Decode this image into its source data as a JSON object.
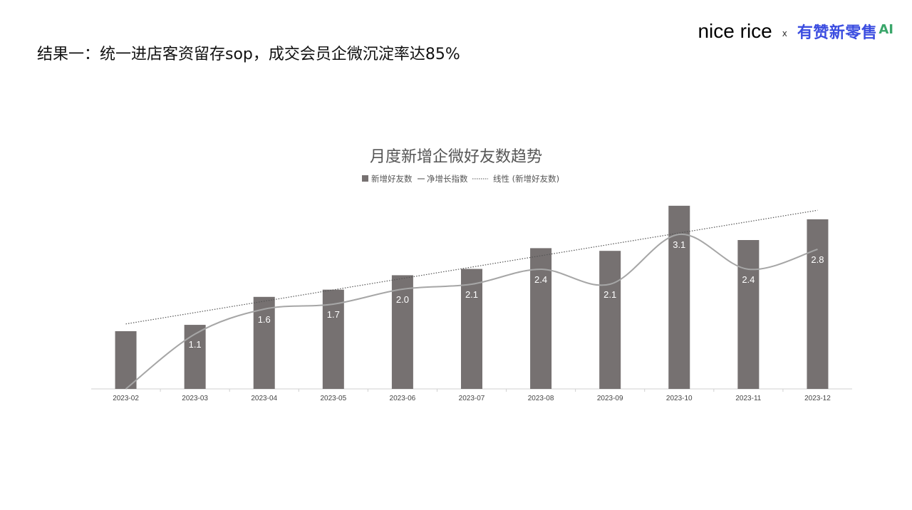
{
  "slide": {
    "title": "结果一：统一进店客资留存sop，成交会员企微沉淀率达85%",
    "brand": {
      "left": "nice rice",
      "separator": "x",
      "right": "有赞新零售",
      "right_suffix": "AI"
    }
  },
  "chart_data": {
    "type": "bar",
    "title": "月度新增企微好友数趋势",
    "categories": [
      "2023-02",
      "2023-03",
      "2023-04",
      "2023-05",
      "2023-06",
      "2023-07",
      "2023-08",
      "2023-09",
      "2023-10",
      "2023-11",
      "2023-12"
    ],
    "series": [
      {
        "name": "新增好友数",
        "type": "bar",
        "color": "#767171",
        "values": [
          3.2,
          3.55,
          5.1,
          5.5,
          6.3,
          6.65,
          7.8,
          7.65,
          10.15,
          8.25,
          9.4
        ]
      },
      {
        "name": "净增长指数",
        "type": "line",
        "color": "#a6a6a6",
        "values": [
          0.0,
          1.1,
          1.6,
          1.7,
          2.0,
          2.1,
          2.4,
          2.1,
          3.1,
          2.4,
          2.8
        ],
        "labels": [
          "",
          "1.1",
          "1.6",
          "1.7",
          "2.0",
          "2.1",
          "2.4",
          "2.1",
          "3.1",
          "2.4",
          "2.8"
        ]
      },
      {
        "name": "线性 (新增好友数)",
        "type": "trendline",
        "color": "#555555",
        "values": [
          3.6,
          4.23,
          4.86,
          5.49,
          6.12,
          6.75,
          7.38,
          8.01,
          8.64,
          9.27,
          9.9
        ]
      }
    ],
    "ylim": [
      0,
      10.5
    ],
    "line_ylim": [
      0,
      3.8
    ],
    "legend_position": "top",
    "grid": false
  }
}
